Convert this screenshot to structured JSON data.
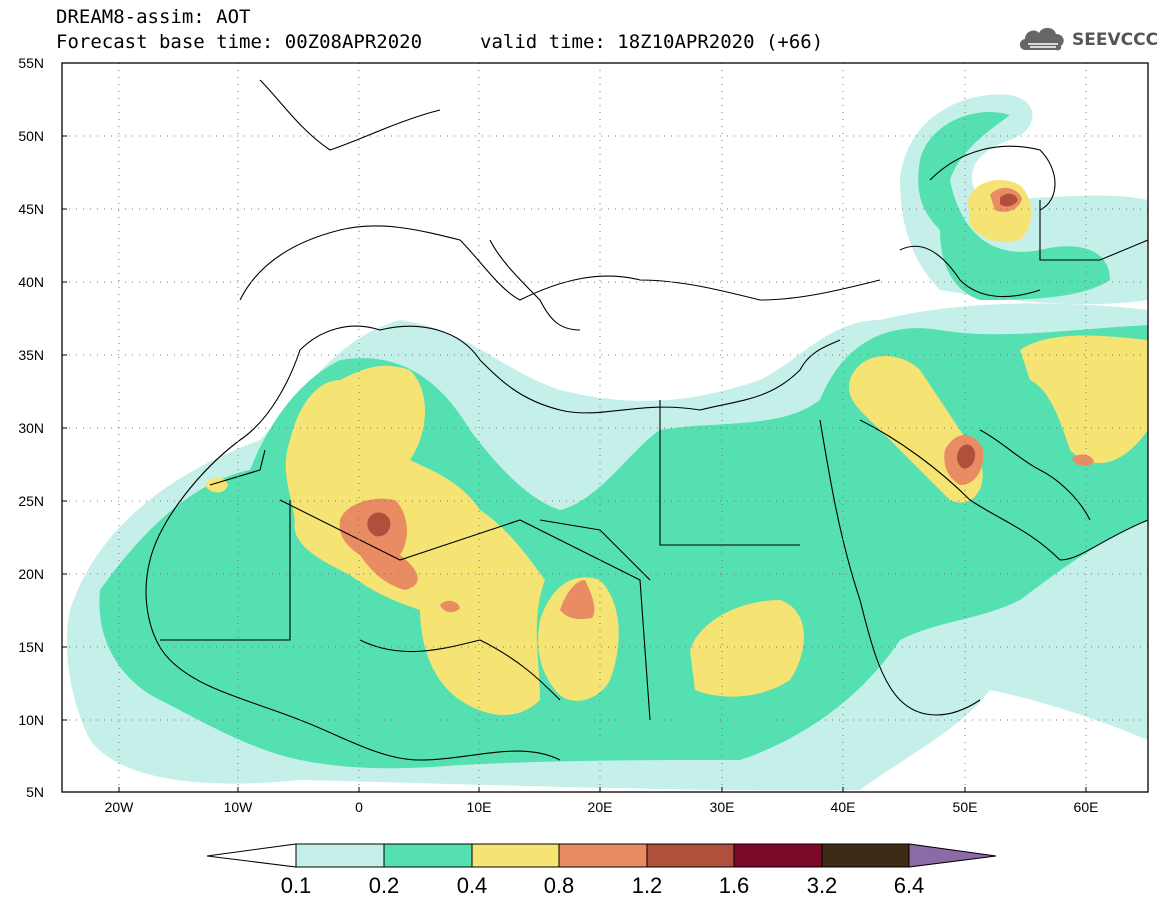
{
  "header": {
    "title": "DREAM8-assim: AOT",
    "base_time": "Forecast base time: 00Z08APR2020",
    "valid_time": "valid time: 18Z10APR2020 (+66)",
    "logo_text": "SEEVCCC",
    "logo_icon": "cloud-icon"
  },
  "map": {
    "lat_labels": [
      "55N",
      "50N",
      "45N",
      "40N",
      "35N",
      "30N",
      "25N",
      "20N",
      "15N",
      "10N",
      "5N"
    ],
    "lon_labels": [
      "20W",
      "10W",
      "0",
      "10E",
      "20E",
      "30E",
      "40E",
      "50E",
      "60E"
    ],
    "lon_range": [
      -25,
      65
    ],
    "lat_range": [
      5,
      55
    ],
    "grid": "dotted"
  },
  "colorbar": {
    "levels": [
      "0.1",
      "0.2",
      "0.4",
      "0.8",
      "1.2",
      "1.6",
      "3.2",
      "6.4"
    ],
    "colors": [
      "#ffffff",
      "#c5f0ea",
      "#55e0b2",
      "#f5e373",
      "#e98b63",
      "#b04f3c",
      "#7a0a28",
      "#3c2a14",
      "#8c6aa8"
    ]
  }
}
